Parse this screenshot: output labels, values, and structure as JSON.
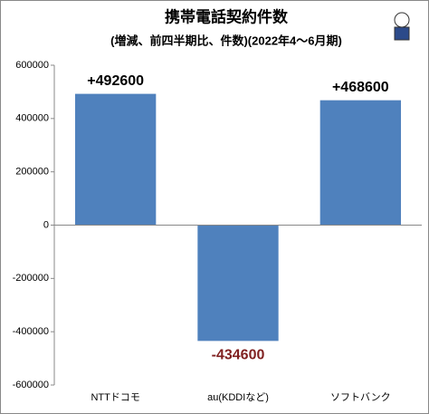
{
  "chart_data": {
    "type": "bar",
    "title": "携帯電話契約件数",
    "subtitle": "(増減、前四半期比、件数)(2022年4～6月期)",
    "categories": [
      "NTTドコモ",
      "au(KDDIなど)",
      "ソフトバンク"
    ],
    "values": [
      492600,
      -434600,
      468600
    ],
    "value_labels": [
      "+492600",
      "-434600",
      "+468600"
    ],
    "color": "#4f81bd",
    "ylim": [
      -600000,
      600000
    ],
    "yticks": [
      -600000,
      -400000,
      -200000,
      0,
      200000,
      400000,
      600000
    ],
    "grid": false
  }
}
